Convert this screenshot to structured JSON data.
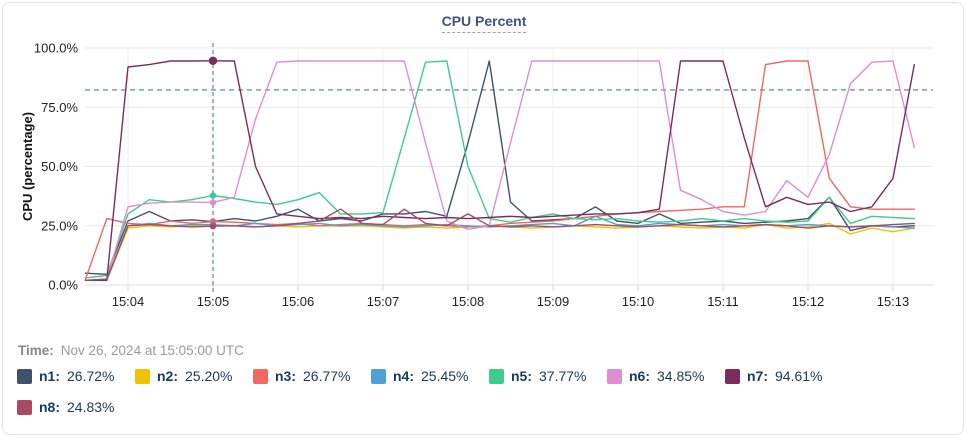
{
  "header": {
    "title": "CPU Percent"
  },
  "footer": {
    "time_prefix": "Time:",
    "time_value": "Nov 26, 2024 at 15:05:00 UTC"
  },
  "colors": {
    "threshold_line": "#4e7d8c",
    "crosshair_line": "#4e7d8c",
    "grid_line": "#e9e9e9",
    "legend_text": "#1b3a60",
    "title_text": "#3f547a"
  },
  "chart_data": {
    "type": "line",
    "title": "CPU Percent",
    "xlabel": "",
    "ylabel": "CPU (percentage)",
    "ylim": [
      0,
      100
    ],
    "grid": true,
    "y_tick_values": [
      0,
      25,
      50,
      75,
      100
    ],
    "y_tick_labels": [
      "0.0%",
      "25.0%",
      "50.0%",
      "75.0%",
      "100.0%"
    ],
    "x_tick_minutes": [
      0,
      1,
      2,
      3,
      4,
      5,
      6,
      7,
      8,
      9
    ],
    "x_tick_labels": [
      "15:04",
      "15:05",
      "15:06",
      "15:07",
      "15:08",
      "15:09",
      "15:10",
      "15:11",
      "15:12",
      "15:13"
    ],
    "x_start_minute": -0.5,
    "x_step_minute": 0.25,
    "threshold_percent": 82.3,
    "cursor": {
      "minute": 1.0,
      "time_label": "Nov 26, 2024 at 15:05:00 UTC"
    },
    "series": [
      {
        "name": "n1",
        "legend_label": "n1:",
        "color": "#40516b",
        "cursor_value": 26.72,
        "cursor_label": "26.72%",
        "values": [
          5,
          4.5,
          27,
          31,
          27,
          27.5,
          26.72,
          28,
          27,
          29,
          32,
          27,
          28,
          27,
          30,
          30,
          31,
          29,
          60,
          94.5,
          35,
          27,
          27.5,
          28,
          33,
          27,
          26,
          30,
          26,
          26.5,
          27,
          26,
          26.5,
          27,
          28,
          37,
          23,
          25,
          24.5,
          25
        ]
      },
      {
        "name": "n2",
        "legend_label": "n2:",
        "color": "#f2c200",
        "cursor_value": 25.2,
        "cursor_label": "25.20%",
        "values": [
          2,
          2,
          24,
          25,
          24.5,
          25,
          25.2,
          25,
          24.5,
          25,
          24.5,
          25,
          24.8,
          25,
          24.5,
          24,
          24.5,
          24,
          24.5,
          25,
          24.5,
          24,
          24.5,
          25,
          24.5,
          24,
          24.5,
          25,
          24.5,
          24,
          24.5,
          24,
          25.5,
          24,
          24.5,
          26,
          21.5,
          24,
          22.5,
          24
        ]
      },
      {
        "name": "n3",
        "legend_label": "n3:",
        "color": "#f0685f",
        "cursor_value": 26.77,
        "cursor_label": "26.77%",
        "values": [
          2.5,
          28,
          26,
          25.5,
          27,
          26,
          26.77,
          26.5,
          26,
          25.5,
          26,
          25,
          25.5,
          26,
          25.5,
          25,
          25.5,
          25,
          24.5,
          25,
          26,
          26.5,
          27,
          28,
          29,
          30,
          30.5,
          31,
          31.5,
          32,
          33,
          33,
          93,
          94.5,
          94.5,
          45,
          33,
          32,
          32,
          32
        ]
      },
      {
        "name": "n4",
        "legend_label": "n4:",
        "color": "#4f9fd9",
        "cursor_value": 25.45,
        "cursor_label": "25.45%",
        "values": [
          2,
          2,
          25,
          26,
          25,
          25.5,
          25.45,
          25,
          26,
          25,
          25.5,
          26,
          25,
          25.5,
          25,
          24.5,
          25,
          25.5,
          25,
          24.5,
          25,
          25.5,
          26,
          25,
          29,
          25.5,
          25,
          26,
          25.5,
          25,
          25.5,
          25,
          25.5,
          25,
          25.5,
          25,
          24.5,
          25,
          24.5,
          24
        ]
      },
      {
        "name": "n5",
        "legend_label": "n5:",
        "color": "#3fcb8e",
        "cursor_value": 37.77,
        "cursor_label": "37.77%",
        "values": [
          3,
          4,
          30,
          36,
          35,
          36,
          37.77,
          36.5,
          35,
          34,
          36,
          39,
          30,
          30,
          30.5,
          62,
          94,
          94.5,
          50,
          28,
          26.5,
          28.5,
          30,
          28,
          27.5,
          28,
          27,
          26.5,
          27,
          28,
          27,
          28,
          27,
          26.5,
          27,
          37,
          26,
          29,
          28.5,
          28
        ]
      },
      {
        "name": "n6",
        "legend_label": "n6:",
        "color": "#df8dd3",
        "cursor_value": 34.85,
        "cursor_label": "34.85%",
        "values": [
          2,
          2.5,
          33,
          34.5,
          35,
          35,
          34.85,
          37,
          70,
          94,
          94.5,
          94.5,
          94.5,
          94.5,
          94.5,
          94.5,
          60,
          27,
          23.5,
          25,
          60,
          94.5,
          94.5,
          94.5,
          94.5,
          94.5,
          94.5,
          94.5,
          40,
          36,
          31,
          29.5,
          31,
          44,
          37,
          55,
          85,
          94,
          94.5,
          58
        ]
      },
      {
        "name": "n7",
        "legend_label": "n7:",
        "color": "#7a2d5c",
        "cursor_value": 94.61,
        "cursor_label": "94.61%",
        "values": [
          2,
          2,
          92,
          93,
          94.5,
          94.5,
          94.61,
          94.5,
          50,
          30,
          29,
          28,
          28.5,
          28,
          29,
          28.5,
          28,
          28.5,
          28,
          28.5,
          29,
          28.5,
          29,
          29.5,
          30,
          30,
          30.5,
          32,
          94.5,
          94.5,
          94.5,
          62,
          33,
          37,
          34,
          35,
          31,
          33,
          45,
          93
        ]
      },
      {
        "name": "n8",
        "legend_label": "n8:",
        "color": "#a84a62",
        "cursor_value": 24.83,
        "cursor_label": "24.83%",
        "values": [
          2,
          2.5,
          25,
          25.5,
          25,
          24.5,
          24.83,
          25,
          24.5,
          25,
          26,
          27,
          32,
          26,
          25.5,
          32,
          26,
          25,
          30,
          25,
          24.5,
          25,
          24.5,
          25,
          25.5,
          25,
          24.5,
          25,
          25.5,
          25,
          24.5,
          25,
          25.5,
          25,
          24,
          25,
          24.5,
          25,
          25.5,
          26
        ]
      }
    ]
  }
}
